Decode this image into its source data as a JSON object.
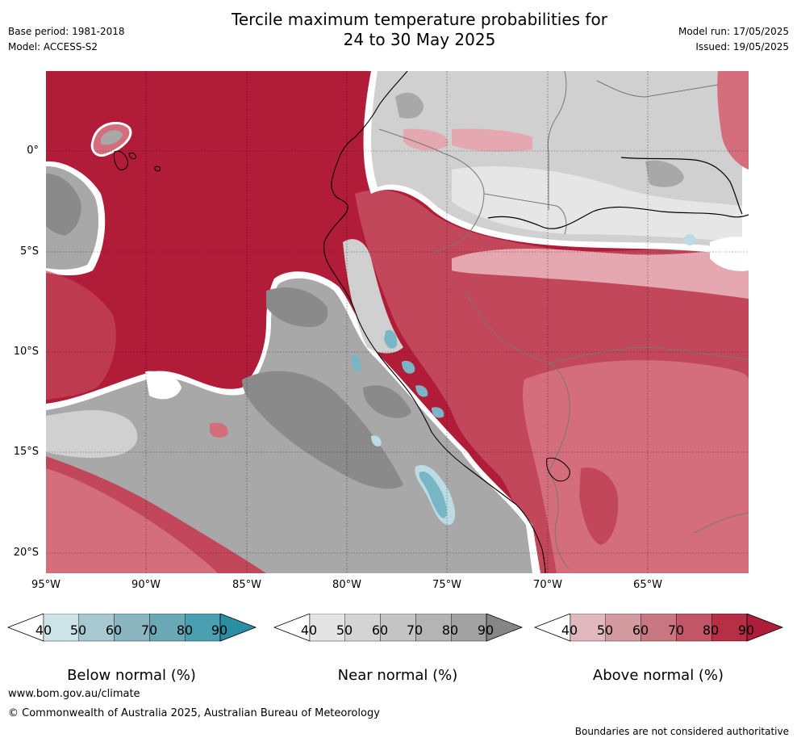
{
  "header": {
    "title_line1": "Tercile maximum temperature probabilities for",
    "title_line2": "24 to 30 May 2025",
    "base_period": "Base period: 1981-2018",
    "model": "Model: ACCESS-S2",
    "model_run": "Model run: 17/05/2025",
    "issued": "Issued: 19/05/2025"
  },
  "map": {
    "lat_labels": [
      "0°",
      "5°S",
      "10°S",
      "15°S",
      "20°S"
    ],
    "lon_labels": [
      "95°W",
      "90°W",
      "85°W",
      "80°W",
      "75°W",
      "70°W",
      "65°W"
    ],
    "colors": {
      "ocean_above_dark": "#b11c38",
      "above_strong": "#c3475a",
      "above_mid": "#d46e7d",
      "above_light": "#e5a7b0",
      "near_dark": "#8a8a8a",
      "near_mid": "#a8a8a8",
      "near_light": "#d0d0d0",
      "near_lightest": "#e6e6e6",
      "below_light": "#bcdbe2",
      "below_mid": "#79b6c5"
    }
  },
  "colorbars": [
    {
      "title": "Below normal (%)",
      "ticks": [
        "40",
        "50",
        "60",
        "70",
        "80",
        "90"
      ],
      "colors": [
        "#ffffff",
        "#cce3e8",
        "#a7c8cf",
        "#89b6c0",
        "#6aa8b5",
        "#4a9fb0",
        "#2a8fa4"
      ]
    },
    {
      "title": "Near normal (%)",
      "ticks": [
        "40",
        "50",
        "60",
        "70",
        "80",
        "90"
      ],
      "colors": [
        "#ffffff",
        "#e4e4e4",
        "#d4d4d4",
        "#c4c4c4",
        "#b4b4b4",
        "#a2a2a2",
        "#868686"
      ]
    },
    {
      "title": "Above normal (%)",
      "ticks": [
        "40",
        "50",
        "60",
        "70",
        "80",
        "90"
      ],
      "colors": [
        "#ffffff",
        "#e0b8be",
        "#d39a9f",
        "#c97683",
        "#c25566",
        "#b52f45",
        "#ae1d3a"
      ]
    }
  ],
  "footer": {
    "website": "www.bom.gov.au/climate",
    "copyright": "© Commonwealth of Australia 2025, Australian Bureau of Meteorology",
    "disclaimer": "Boundaries are not considered authoritative"
  }
}
